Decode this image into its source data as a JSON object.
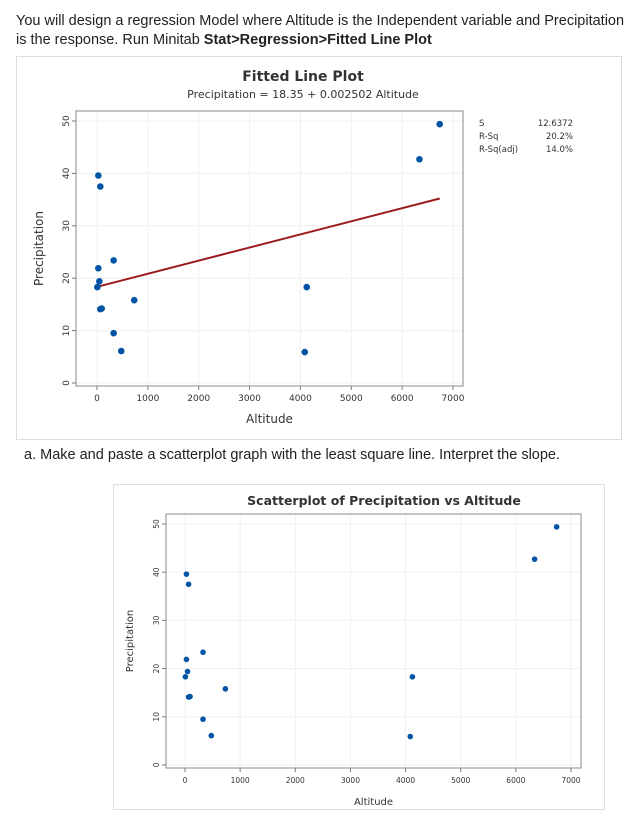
{
  "intro": {
    "prefix": "You will design a regression Model where Altitude is the Independent variable and Precipitation is the response. Run Minitab ",
    "bold": "Stat>Regression>Fitted Line Plot"
  },
  "question_a": "a.  Make and paste a scatterplot graph with the least square line. Interpret the slope.",
  "colors": {
    "points": "#0054a6",
    "fit_line": "#9b1c1c",
    "grid": "#f0f0f0"
  },
  "chart_data": [
    {
      "type": "scatter",
      "title": "Fitted Line Plot",
      "subtitle": "Precipitation = 18.35 + 0.002502 Altitude",
      "xlabel": "Altitude",
      "ylabel": "Precipitation",
      "xlim": [
        0,
        7000
      ],
      "ylim": [
        0,
        50
      ],
      "xticks": [
        "0",
        "1000",
        "2000",
        "3000",
        "4000",
        "5000",
        "6000",
        "7000"
      ],
      "yticks": [
        "0",
        "10",
        "20",
        "30",
        "40",
        "50"
      ],
      "grid": true,
      "fit": {
        "intercept": 18.35,
        "slope": 0.002502,
        "x_range": [
          60,
          6740
        ]
      },
      "stats": [
        {
          "label": "S",
          "value": "12.6372"
        },
        {
          "label": "R-Sq",
          "value": "20.2%"
        },
        {
          "label": "R-Sq(adj)",
          "value": "14.0%"
        }
      ],
      "points": [
        [
          26,
          39.6
        ],
        [
          65,
          37.5
        ],
        [
          26,
          21.9
        ],
        [
          327,
          23.4
        ],
        [
          46,
          19.4
        ],
        [
          7,
          18.3
        ],
        [
          65,
          14.1
        ],
        [
          92,
          14.2
        ],
        [
          732,
          15.8
        ],
        [
          327,
          9.5
        ],
        [
          477,
          6.1
        ],
        [
          4085,
          5.9
        ],
        [
          4124,
          18.3
        ],
        [
          6340,
          42.7
        ],
        [
          6739,
          49.4
        ]
      ]
    },
    {
      "type": "scatter",
      "title": "Scatterplot of Precipitation vs Altitude",
      "xlabel": "Altitude",
      "ylabel": "Precipitation",
      "xlim": [
        0,
        7000
      ],
      "ylim": [
        0,
        50
      ],
      "xticks": [
        "0",
        "1000",
        "2000",
        "3000",
        "4000",
        "5000",
        "6000",
        "7000"
      ],
      "yticks": [
        "0",
        "10",
        "20",
        "30",
        "40",
        "50"
      ],
      "grid": true,
      "points": [
        [
          26,
          39.6
        ],
        [
          65,
          37.5
        ],
        [
          26,
          21.9
        ],
        [
          327,
          23.4
        ],
        [
          46,
          19.4
        ],
        [
          7,
          18.3
        ],
        [
          65,
          14.1
        ],
        [
          92,
          14.2
        ],
        [
          732,
          15.8
        ],
        [
          327,
          9.5
        ],
        [
          477,
          6.1
        ],
        [
          4085,
          5.9
        ],
        [
          4124,
          18.3
        ],
        [
          6340,
          42.7
        ],
        [
          6739,
          49.4
        ]
      ]
    }
  ]
}
